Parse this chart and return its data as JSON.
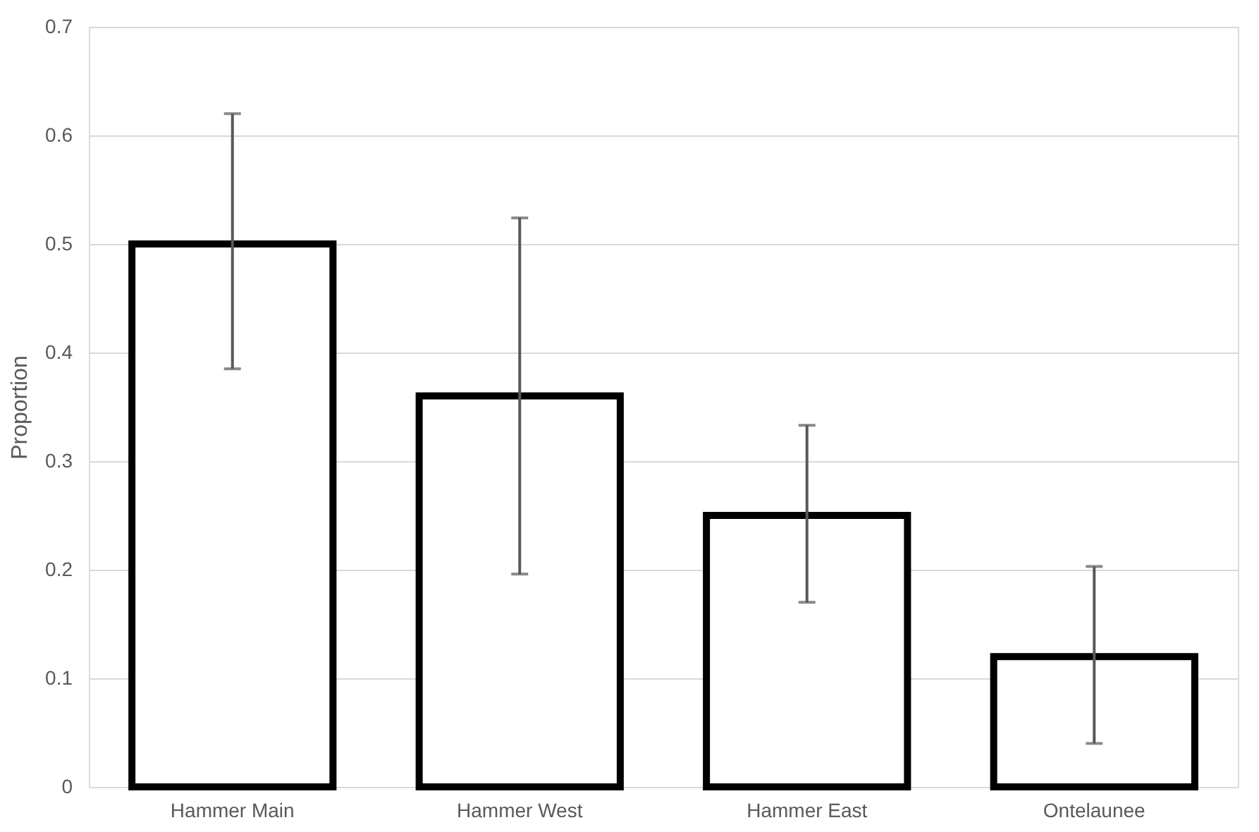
{
  "chart_data": {
    "type": "bar",
    "ylabel": "Proportion",
    "categories": [
      "Hammer Main",
      "Hammer West",
      "Hammer East",
      "Ontelaunee"
    ],
    "values": [
      0.5,
      0.36,
      0.25,
      0.12
    ],
    "errors": [
      [
        0.385,
        0.62
      ],
      [
        0.196,
        0.524
      ],
      [
        0.17,
        0.333
      ],
      [
        0.04,
        0.203
      ]
    ],
    "color": "#ffffff",
    "ylim": [
      0,
      0.7
    ],
    "yticks": [
      0,
      0.1,
      0.2,
      0.3,
      0.4,
      0.5,
      0.6,
      0.7
    ],
    "grid": "y"
  }
}
